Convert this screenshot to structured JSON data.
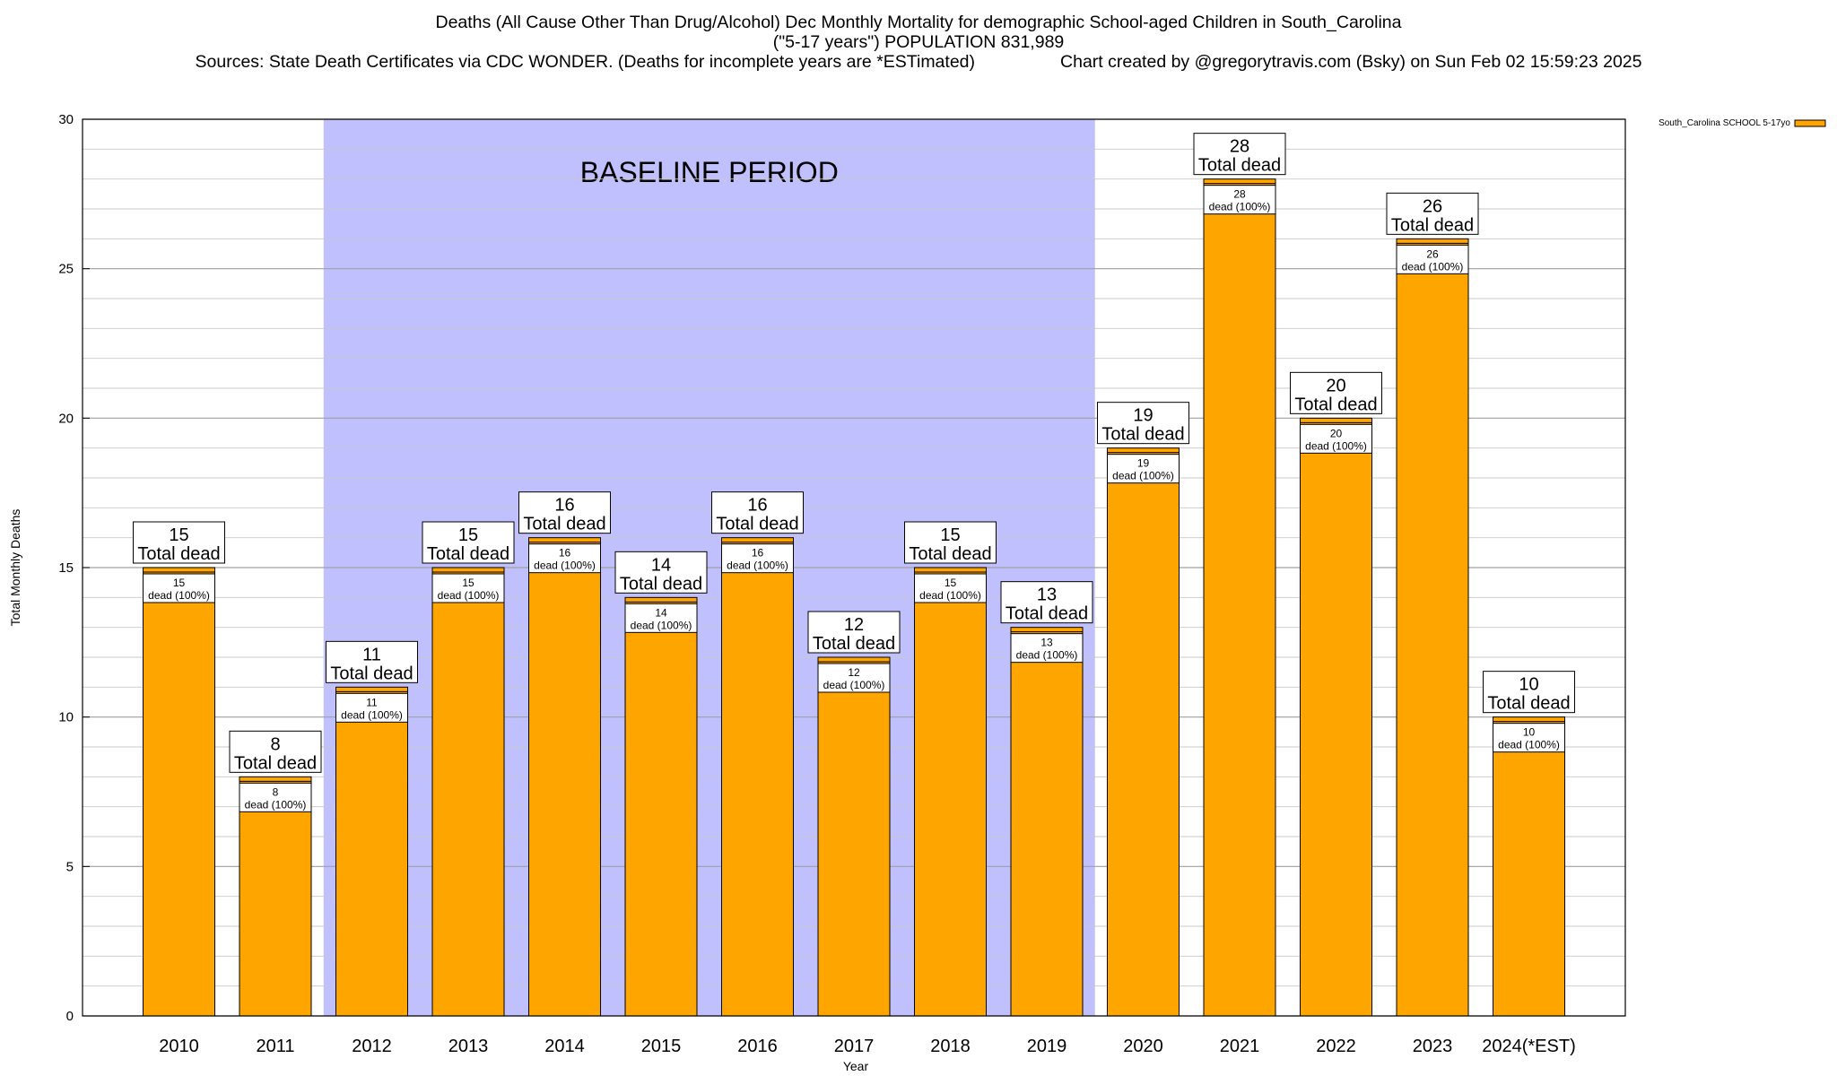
{
  "header": {
    "title": "Deaths (All Cause Other Than Drug/Alcohol) Dec Monthly Mortality for demographic School-aged Children in South_Carolina",
    "subtitle": "(\"5-17 years\") POPULATION 831,989",
    "sources": "Sources: State Death Certificates via CDC WONDER. (Deaths for incomplete years are *ESTimated)",
    "credit": "Chart created by @gregorytravis.com (Bsky) on Sun Feb 02 15:59:23 2025"
  },
  "chart_data": {
    "type": "bar",
    "xlabel": "Year",
    "ylabel": "Total Monthly Deaths",
    "ylim": [
      0,
      30
    ],
    "yticks": [
      0,
      5,
      10,
      15,
      20,
      25,
      30
    ],
    "minor_grid_step": 1,
    "grid": true,
    "categories": [
      "2010",
      "2011",
      "2012",
      "2013",
      "2014",
      "2015",
      "2016",
      "2017",
      "2018",
      "2019",
      "2020",
      "2021",
      "2022",
      "2023",
      "2024(*EST)"
    ],
    "series": [
      {
        "name": "South_Carolina SCHOOL 5-17yo",
        "color": "#FFA500",
        "values": [
          15,
          8,
          11,
          15,
          16,
          14,
          16,
          12,
          15,
          13,
          19,
          28,
          20,
          26,
          10
        ]
      }
    ],
    "total_label_suffix": "Total dead",
    "inner_label_suffix": "dead (100%)",
    "baseline": {
      "label": "BASELINE PERIOD",
      "from": "2012",
      "to": "2019",
      "color": "#C0C0FF"
    },
    "legend_position": "top-right"
  }
}
